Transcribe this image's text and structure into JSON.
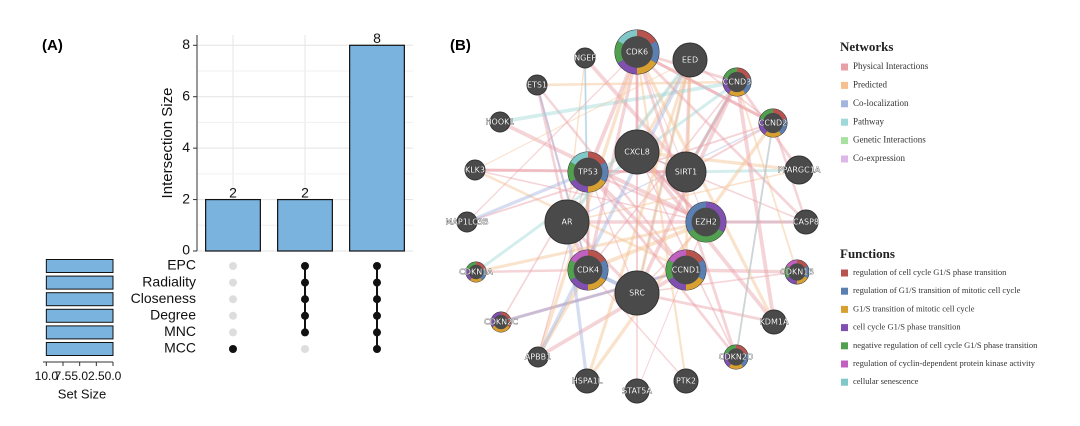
{
  "panels": [
    "(A)",
    "(B)"
  ],
  "chart_data": [
    {
      "type": "upset",
      "ylabel": "Intersection Size",
      "values": [
        2,
        2,
        8
      ],
      "color": "#7ab3de",
      "ylim": [
        0,
        8.4
      ],
      "yticks": [
        0,
        2,
        4,
        6,
        8
      ],
      "grid": true,
      "memberships": [
        [
          5
        ],
        [
          0,
          1,
          2,
          3,
          4
        ],
        [
          0,
          1,
          2,
          3,
          4,
          5
        ]
      ],
      "sets": {
        "names": [
          "EPC",
          "Radiality",
          "Closeness",
          "Degree",
          "MNC",
          "MCC"
        ],
        "values": [
          10,
          10,
          10,
          10,
          10,
          10
        ],
        "xlabel": "Set Size",
        "xlim": [
          10.5,
          0
        ],
        "xticks": [
          {
            "value": 10,
            "label": "10.0"
          },
          7.5,
          {
            "value": 5,
            "label": "5.0"
          },
          2.5,
          {
            "value": 0,
            "label": "0.0"
          }
        ]
      }
    }
  ],
  "network": {
    "nodes": [
      "CDK6",
      "EED",
      "NGEF",
      "CCND3",
      "ETS1",
      "CCND2",
      "HOOK1",
      "CXCL8",
      "TP53",
      "SIRT1",
      "PPARGC1A",
      "KLK3",
      "AR",
      "EZH2",
      "CASP8",
      "MAP1LC3B",
      "CDKN1A",
      "CDK4",
      "CCND1",
      "CDKN1B",
      "SRC",
      "KDM1A",
      "CDKN2C",
      "APBB1",
      "CDKN2D",
      "HSPA1L",
      "PTK2",
      "STAT5A"
    ],
    "networks_title": "Networks",
    "networks": [
      {
        "label": "Physical Interactions",
        "color": "#e8a0a8"
      },
      {
        "label": "Predicted",
        "color": "#f5c08e"
      },
      {
        "label": "Co-localization",
        "color": "#a3b4dd"
      },
      {
        "label": "Pathway",
        "color": "#9fd8d8"
      },
      {
        "label": "Genetic Interactions",
        "color": "#a8e0a0"
      },
      {
        "label": "Co-expression",
        "color": "#dcb8e8"
      }
    ],
    "functions_title": "Functions",
    "functions": [
      {
        "label": "regulation of cell cycle G1/S phase transition",
        "color": "#b85450"
      },
      {
        "label": "regulation of G1/S transition of mitotic cell cycle",
        "color": "#5b7fb0"
      },
      {
        "label": "G1/S transition of mitotic cell cycle",
        "color": "#d8a030"
      },
      {
        "label": "cell cycle G1/S phase transition",
        "color": "#8050b0"
      },
      {
        "label": "negative regulation of cell cycle G1/S phase transition",
        "color": "#50a050"
      },
      {
        "label": "regulation of cyclin-dependent protein kinase activity",
        "color": "#c060c0"
      },
      {
        "label": "cellular senescence",
        "color": "#80c8c8"
      }
    ]
  }
}
